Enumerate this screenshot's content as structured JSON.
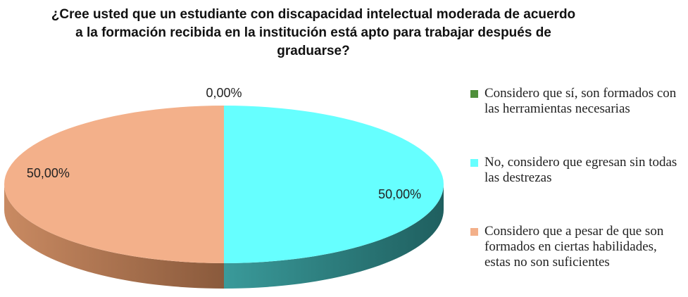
{
  "chart_data": {
    "type": "pie",
    "title": "¿Cree usted que un estudiante con discapacidad intelectual moderada de acuerdo a la formación recibida en la institución está apto para trabajar después de graduarse?",
    "categories": [
      "Considero que sí, son formados con las herramientas necesarias",
      "No, considero que egresan sin todas las destrezas",
      "Considero que a pesar de que son formados en ciertas habilidades, estas no son suficientes"
    ],
    "values": [
      0,
      50,
      50
    ],
    "value_labels": [
      "0,00%",
      "50,00%",
      "50,00%"
    ],
    "colors": [
      "#4f8f3a",
      "#66ffff",
      "#f3b08a"
    ],
    "legend": "right"
  }
}
